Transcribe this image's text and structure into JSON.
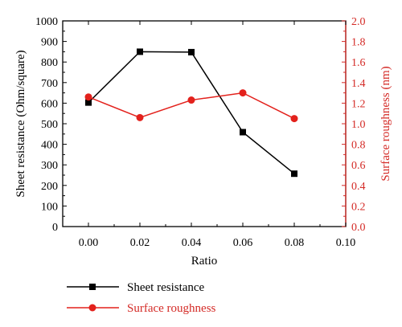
{
  "colors": {
    "left_axis": "#000000",
    "right_axis": "#d42a26",
    "series_sheet": "#000000",
    "series_rough": "#e3211c"
  },
  "chart_data": {
    "type": "line",
    "xlabel": "Ratio",
    "ylabel_left": "Sheet resistance (Ohm/square)",
    "ylabel_right": "Surface roughness (nm)",
    "xlim": [
      -0.01,
      0.1
    ],
    "ylim_left": [
      0,
      1000
    ],
    "ylim_right": [
      0,
      2.0
    ],
    "x_ticks": [
      "0.00",
      "0.02",
      "0.04",
      "0.06",
      "0.08",
      "0.10"
    ],
    "y_left_ticks": [
      "0",
      "100",
      "200",
      "300",
      "400",
      "500",
      "600",
      "700",
      "800",
      "900",
      "1000"
    ],
    "y_right_ticks": [
      "0.0",
      "0.2",
      "0.4",
      "0.6",
      "0.8",
      "1.0",
      "1.2",
      "1.4",
      "1.6",
      "1.8",
      "2.0"
    ],
    "grid": false,
    "legend_position": "bottom-left",
    "series": [
      {
        "name": "Sheet resistance",
        "axis": "left",
        "marker": "square",
        "x": [
          0.0,
          0.02,
          0.04,
          0.06,
          0.08
        ],
        "values": [
          603,
          850,
          848,
          459,
          257
        ]
      },
      {
        "name": "Surface roughness",
        "axis": "right",
        "marker": "circle",
        "x": [
          0.0,
          0.02,
          0.04,
          0.06,
          0.08
        ],
        "values": [
          1.26,
          1.06,
          1.23,
          1.3,
          1.05
        ]
      }
    ]
  }
}
